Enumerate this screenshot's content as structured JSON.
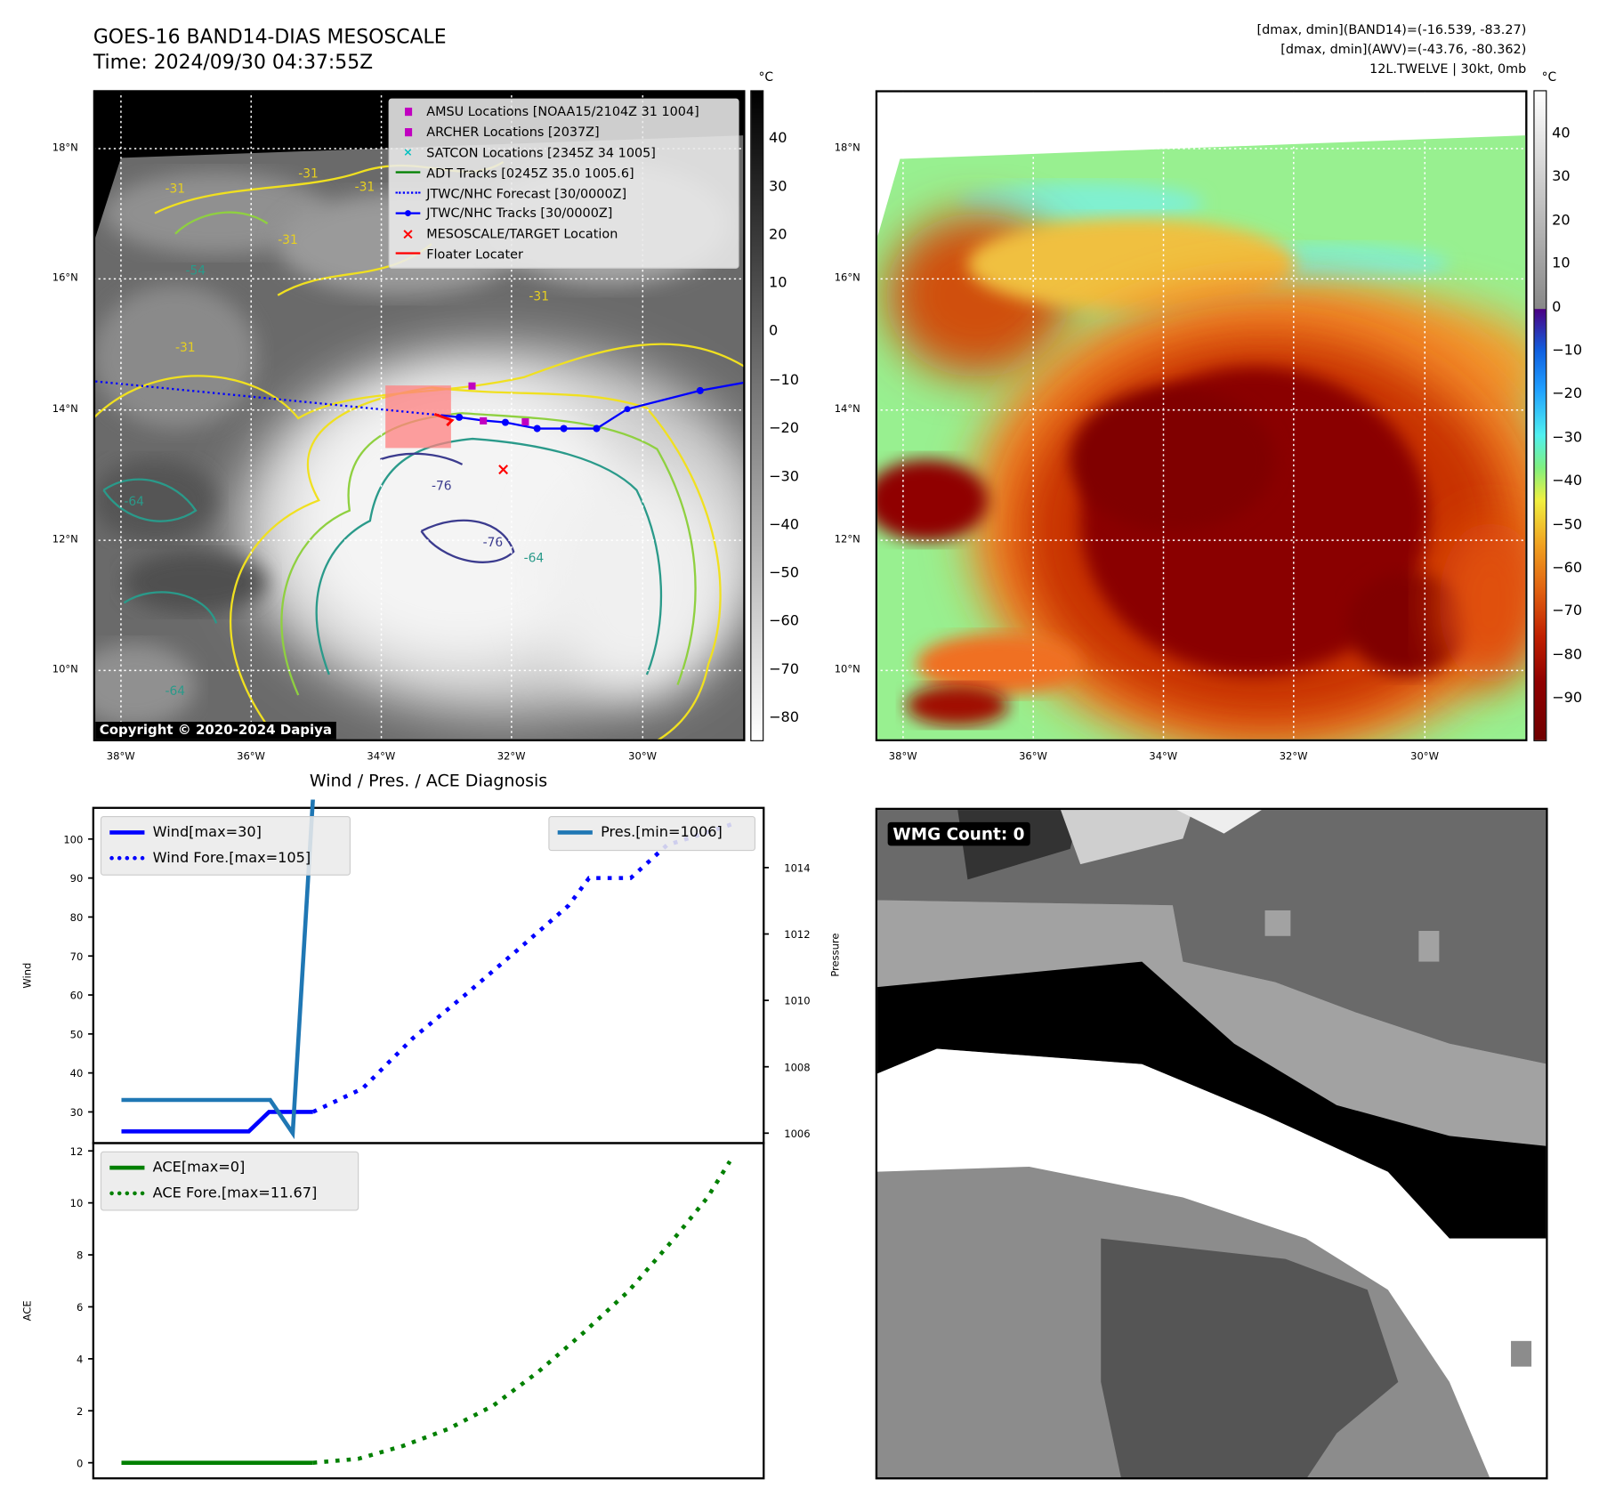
{
  "header": {
    "title": "GOES-16 BAND14-DIAS MESOSCALE",
    "time": "Time: 2024/09/30 04:37:55Z",
    "stats_band14": "[dmax, dmin](BAND14)=(-16.539, -83.27)",
    "stats_awv": "[dmax, dmin](AWV)=(-43.76, -80.362)",
    "storm": "12L.TWELVE | 30kt, 0mb"
  },
  "map_left": {
    "lat_labels": [
      "18°N",
      "16°N",
      "14°N",
      "12°N",
      "10°N"
    ],
    "lon_labels": [
      "38°W",
      "36°W",
      "34°W",
      "32°W",
      "30°W"
    ],
    "colorbar_unit": "°C",
    "colorbar_ticks": [
      "40",
      "30",
      "20",
      "10",
      "0",
      "−10",
      "−20",
      "−30",
      "−40",
      "−50",
      "−60",
      "−70",
      "−80"
    ],
    "copyright": "Copyright © 2020-2024 Dapiya",
    "contour_labels": [
      "-31",
      "-31",
      "-31",
      "-31",
      "-31",
      "-31",
      "-54",
      "-64",
      "-64",
      "-76",
      "-76",
      "-64"
    ],
    "legend": [
      {
        "label": "AMSU Locations [NOAA15/2104Z 31 1004]",
        "symbol": "square",
        "color": "#c000c0"
      },
      {
        "label": "ARCHER Locations [2037Z]",
        "symbol": "square",
        "color": "#c000c0"
      },
      {
        "label": "SATCON Locations [2345Z 34 1005]",
        "symbol": "x-small",
        "color": "#00c0c0"
      },
      {
        "label": "ADT Tracks [0245Z 35.0 1005.6]",
        "symbol": "line",
        "color": "#008000"
      },
      {
        "label": "JTWC/NHC Forecast [30/0000Z]",
        "symbol": "dotted",
        "color": "#0000ff"
      },
      {
        "label": "JTWC/NHC Tracks [30/0000Z]",
        "symbol": "line-dot",
        "color": "#0000ff"
      },
      {
        "label": "MESOSCALE/TARGET Location",
        "symbol": "x",
        "color": "#ff0000"
      },
      {
        "label": "Floater Locater",
        "symbol": "line",
        "color": "#ff0000"
      }
    ]
  },
  "map_right": {
    "lat_labels": [
      "18°N",
      "16°N",
      "14°N",
      "12°N",
      "10°N"
    ],
    "lon_labels": [
      "38°W",
      "36°W",
      "34°W",
      "32°W",
      "30°W"
    ],
    "colorbar_unit": "°C",
    "colorbar_ticks": [
      "40",
      "30",
      "20",
      "10",
      "0",
      "−10",
      "−20",
      "−30",
      "−40",
      "−50",
      "−60",
      "−70",
      "−80",
      "−90"
    ]
  },
  "wmg": {
    "label": "WMG Count: 0"
  },
  "chart_data": [
    {
      "type": "line",
      "title": "Wind / Pres. / ACE Diagnosis",
      "ylabel": "Wind",
      "ylabel_right": "Pressure",
      "ylim": [
        22,
        108
      ],
      "ylim_right": [
        1005.7,
        1015.8
      ],
      "xlim": [
        -2.5,
        57
      ],
      "yticks": [
        30,
        40,
        50,
        60,
        70,
        80,
        90,
        100
      ],
      "yticks_right": [
        1006,
        1008,
        1010,
        1012,
        1014
      ],
      "series": [
        {
          "name": "Wind[max=30]",
          "axis": "left",
          "style": "solid",
          "color": "#0000ff",
          "points": [
            [
              0,
              25
            ],
            [
              11.3,
              25
            ],
            [
              13.1,
              30
            ],
            [
              17,
              30
            ]
          ]
        },
        {
          "name": "Wind Fore.[max=105]",
          "axis": "left",
          "style": "dotted",
          "color": "#0000ff",
          "points": [
            [
              17,
              30
            ],
            [
              21.4,
              36
            ],
            [
              25.9,
              49
            ],
            [
              30.5,
              60
            ],
            [
              35.1,
              71.4
            ],
            [
              39.7,
              83
            ],
            [
              41.5,
              90
            ],
            [
              45.2,
              90
            ],
            [
              48.4,
              98.4
            ],
            [
              54.4,
              104
            ]
          ]
        },
        {
          "name": "Pres.[min=1006]",
          "axis": "right",
          "style": "solid",
          "color": "#1f77b4",
          "points": [
            [
              0,
              1007
            ],
            [
              13.2,
              1007
            ],
            [
              15.2,
              1006
            ],
            [
              17,
              1016.1
            ]
          ]
        }
      ]
    },
    {
      "type": "line",
      "ylabel": "ACE",
      "ylim": [
        -0.6,
        12.3
      ],
      "xlim": [
        -2.5,
        57
      ],
      "yticks": [
        0,
        2,
        4,
        6,
        8,
        10,
        12
      ],
      "series": [
        {
          "name": "ACE[max=0]",
          "style": "solid",
          "color": "#008000",
          "points": [
            [
              0,
              0
            ],
            [
              17,
              0
            ]
          ]
        },
        {
          "name": "ACE Fore.[max=11.67]",
          "style": "dotted",
          "color": "#008000",
          "points": [
            [
              17,
              0
            ],
            [
              21,
              0.15
            ],
            [
              25,
              0.65
            ],
            [
              29,
              1.3
            ],
            [
              33,
              2.2
            ],
            [
              37,
              3.5
            ],
            [
              41,
              5.0
            ],
            [
              45,
              6.6
            ],
            [
              49,
              8.6
            ],
            [
              52,
              10.2
            ],
            [
              54,
              11.6
            ]
          ]
        }
      ]
    }
  ]
}
